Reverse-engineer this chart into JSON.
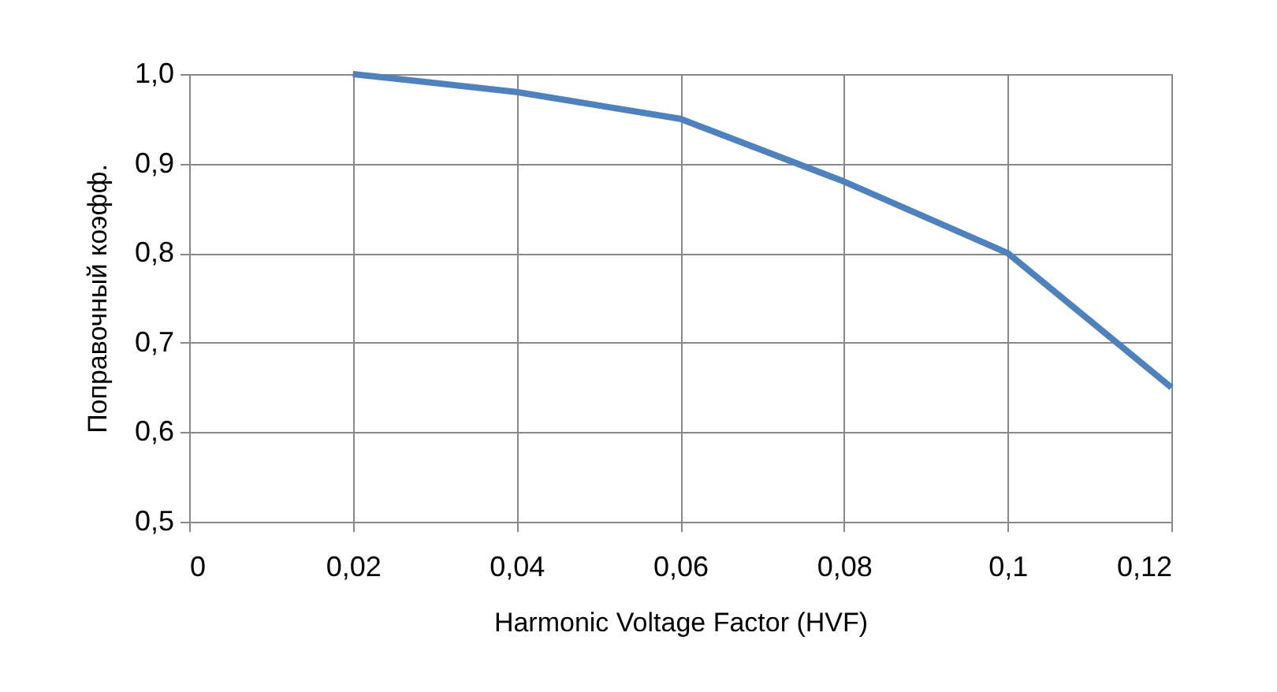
{
  "chart_data": {
    "type": "line",
    "xlabel": "Harmonic Voltage Factor (HVF)",
    "ylabel": "Поправочный коэфф.",
    "x": [
      0.02,
      0.04,
      0.06,
      0.08,
      0.1,
      0.12
    ],
    "series": [
      {
        "color": "#4f81bd",
        "values": [
          1.0,
          0.98,
          0.95,
          0.88,
          0.8,
          0.65
        ]
      }
    ],
    "xlim": [
      0,
      0.12
    ],
    "ylim": [
      0.5,
      1.0
    ],
    "xticks": [
      0,
      {
        "value": 0.02,
        "label": "0,02"
      },
      {
        "value": 0.04,
        "label": "0,04"
      },
      {
        "value": 0.06,
        "label": "0,06"
      },
      {
        "value": 0.08,
        "label": "0,08"
      },
      {
        "value": 0.1,
        "label": "0,1"
      },
      {
        "value": 0.12,
        "label": "0,12"
      }
    ],
    "yticks": [
      {
        "value": 0.5,
        "label": "0,5"
      },
      {
        "value": 0.6,
        "label": "0,6"
      },
      {
        "value": 0.7,
        "label": "0,7"
      },
      {
        "value": 0.8,
        "label": "0,8"
      },
      {
        "value": 0.9,
        "label": "0,9"
      },
      {
        "value": 1.0,
        "label": "1,0"
      }
    ],
    "grid": true,
    "marker": "none",
    "line_style": "solid"
  }
}
